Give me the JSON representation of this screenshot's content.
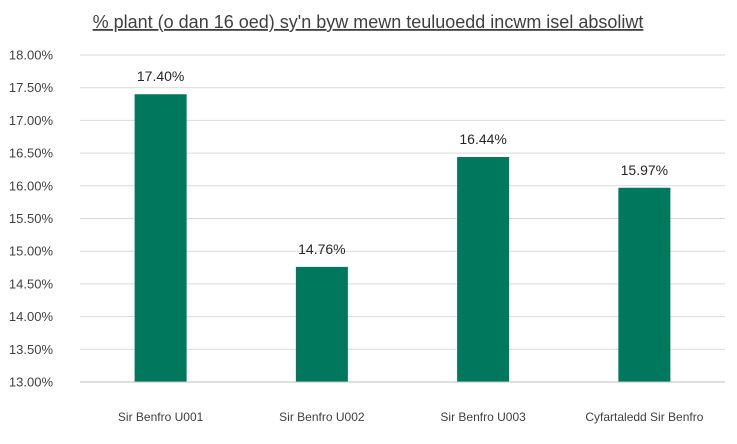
{
  "chart_data": {
    "type": "bar",
    "title": "% plant (o dan 16 oed) sy'n byw mewn teuluoedd incwm isel absoliwt",
    "xlabel": "",
    "ylabel": "",
    "categories": [
      "Sir Benfro U001",
      "Sir Benfro U002",
      "Sir Benfro U003",
      "Cyfartaledd Sir Benfro"
    ],
    "values": [
      17.4,
      14.76,
      16.44,
      15.97
    ],
    "data_labels": [
      "17.40%",
      "14.76%",
      "16.44%",
      "15.97%"
    ],
    "ylim": [
      13.0,
      18.0
    ],
    "y_ticks": [
      13.0,
      13.5,
      14.0,
      14.5,
      15.0,
      15.5,
      16.0,
      16.5,
      17.0,
      17.5,
      18.0
    ],
    "y_tick_labels": [
      "13.00%",
      "13.50%",
      "14.00%",
      "14.50%",
      "15.00%",
      "15.50%",
      "16.00%",
      "16.50%",
      "17.00%",
      "17.50%",
      "18.00%"
    ],
    "grid": true,
    "legend": "none",
    "bar_color": "#00785e",
    "gridline_color": "#d9d9d9"
  }
}
